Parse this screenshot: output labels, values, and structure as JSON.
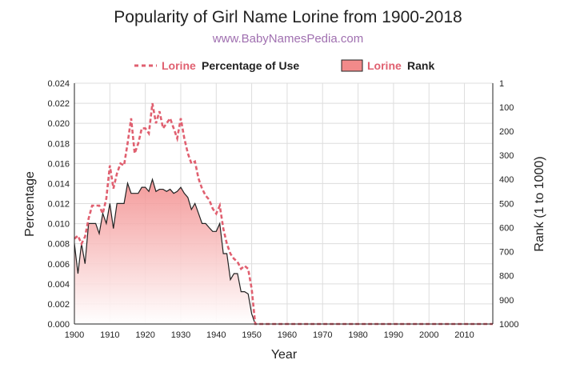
{
  "title": "Popularity of Girl Name Lorine from 1900-2018",
  "subtitle": "www.BabyNamesPedia.com",
  "colors": {
    "percentage_line": "#e06070",
    "rank_line": "#222222",
    "rank_fill_top": "#f28a8a",
    "rank_fill_bottom": "#ffffff",
    "grid": "#dddddd",
    "legend_name": "#e06070"
  },
  "chart_data": {
    "type": "line",
    "title": "Popularity of Girl Name Lorine from 1900-2018",
    "xlabel": "Year",
    "ylabel": "Percentage",
    "y2label": "Rank (1 to 1000)",
    "xlim": [
      1900,
      2018
    ],
    "ylim": [
      0,
      0.024
    ],
    "y2lim": [
      1,
      1000
    ],
    "y2_inverted": true,
    "grid": true,
    "legend_position": "top",
    "x_ticks": [
      "1900",
      "1910",
      "1920",
      "1930",
      "1940",
      "1950",
      "1960",
      "1970",
      "1980",
      "1990",
      "2000",
      "2010"
    ],
    "y_ticks": [
      "0.000",
      "0.002",
      "0.004",
      "0.006",
      "0.008",
      "0.010",
      "0.012",
      "0.014",
      "0.016",
      "0.018",
      "0.020",
      "0.022",
      "0.024"
    ],
    "y2_ticks": [
      "1",
      "100",
      "200",
      "300",
      "400",
      "500",
      "600",
      "700",
      "800",
      "900",
      "1000"
    ],
    "series": [
      {
        "name": "Percentage of Use",
        "legend_name": "Lorine",
        "legend_text": "Percentage of Use",
        "style": "dashed",
        "x": [
          1900,
          1901,
          1902,
          1903,
          1904,
          1905,
          1906,
          1907,
          1908,
          1909,
          1910,
          1911,
          1912,
          1913,
          1914,
          1915,
          1916,
          1917,
          1918,
          1919,
          1920,
          1921,
          1922,
          1923,
          1924,
          1925,
          1926,
          1927,
          1928,
          1929,
          1930,
          1931,
          1932,
          1933,
          1934,
          1935,
          1936,
          1937,
          1938,
          1939,
          1940,
          1941,
          1942,
          1943,
          1944,
          1945,
          1946,
          1947,
          1948,
          1949,
          1950,
          1951,
          1952,
          1960,
          1970,
          1980,
          1990,
          2000,
          2010,
          2018
        ],
        "values": [
          0.0085,
          0.0088,
          0.008,
          0.0087,
          0.0105,
          0.0118,
          0.0118,
          0.0118,
          0.011,
          0.0125,
          0.0158,
          0.0135,
          0.015,
          0.016,
          0.0158,
          0.018,
          0.0205,
          0.017,
          0.018,
          0.0195,
          0.0195,
          0.019,
          0.022,
          0.02,
          0.0212,
          0.0195,
          0.02,
          0.0205,
          0.0195,
          0.0185,
          0.0205,
          0.0185,
          0.017,
          0.016,
          0.0162,
          0.0145,
          0.0135,
          0.0128,
          0.0124,
          0.0115,
          0.011,
          0.0118,
          0.0095,
          0.008,
          0.007,
          0.0065,
          0.0062,
          0.0055,
          0.0058,
          0.0055,
          0.0035,
          0.0,
          0.0,
          0.0,
          0.0,
          0.0,
          0.0,
          0.0,
          0.0,
          0.0
        ]
      },
      {
        "name": "Rank",
        "legend_name": "Lorine",
        "legend_text": "Rank",
        "style": "area",
        "axis": "right",
        "x": [
          1900,
          1901,
          1902,
          1903,
          1904,
          1905,
          1906,
          1907,
          1908,
          1909,
          1910,
          1911,
          1912,
          1913,
          1914,
          1915,
          1916,
          1917,
          1918,
          1919,
          1920,
          1921,
          1922,
          1923,
          1924,
          1925,
          1926,
          1927,
          1928,
          1929,
          1930,
          1931,
          1932,
          1933,
          1934,
          1935,
          1936,
          1937,
          1938,
          1939,
          1940,
          1941,
          1942,
          1943,
          1944,
          1945,
          1946,
          1947,
          1948,
          1949,
          1950,
          1951
        ],
        "values": [
          666,
          791,
          666,
          750,
          583,
          583,
          583,
          625,
          541,
          583,
          500,
          604,
          500,
          500,
          500,
          416,
          458,
          458,
          458,
          433,
          433,
          450,
          400,
          450,
          441,
          441,
          450,
          441,
          458,
          450,
          433,
          458,
          475,
          525,
          500,
          541,
          583,
          583,
          600,
          616,
          616,
          583,
          708,
          708,
          816,
          791,
          791,
          866,
          866,
          875,
          958,
          1000
        ]
      }
    ]
  }
}
